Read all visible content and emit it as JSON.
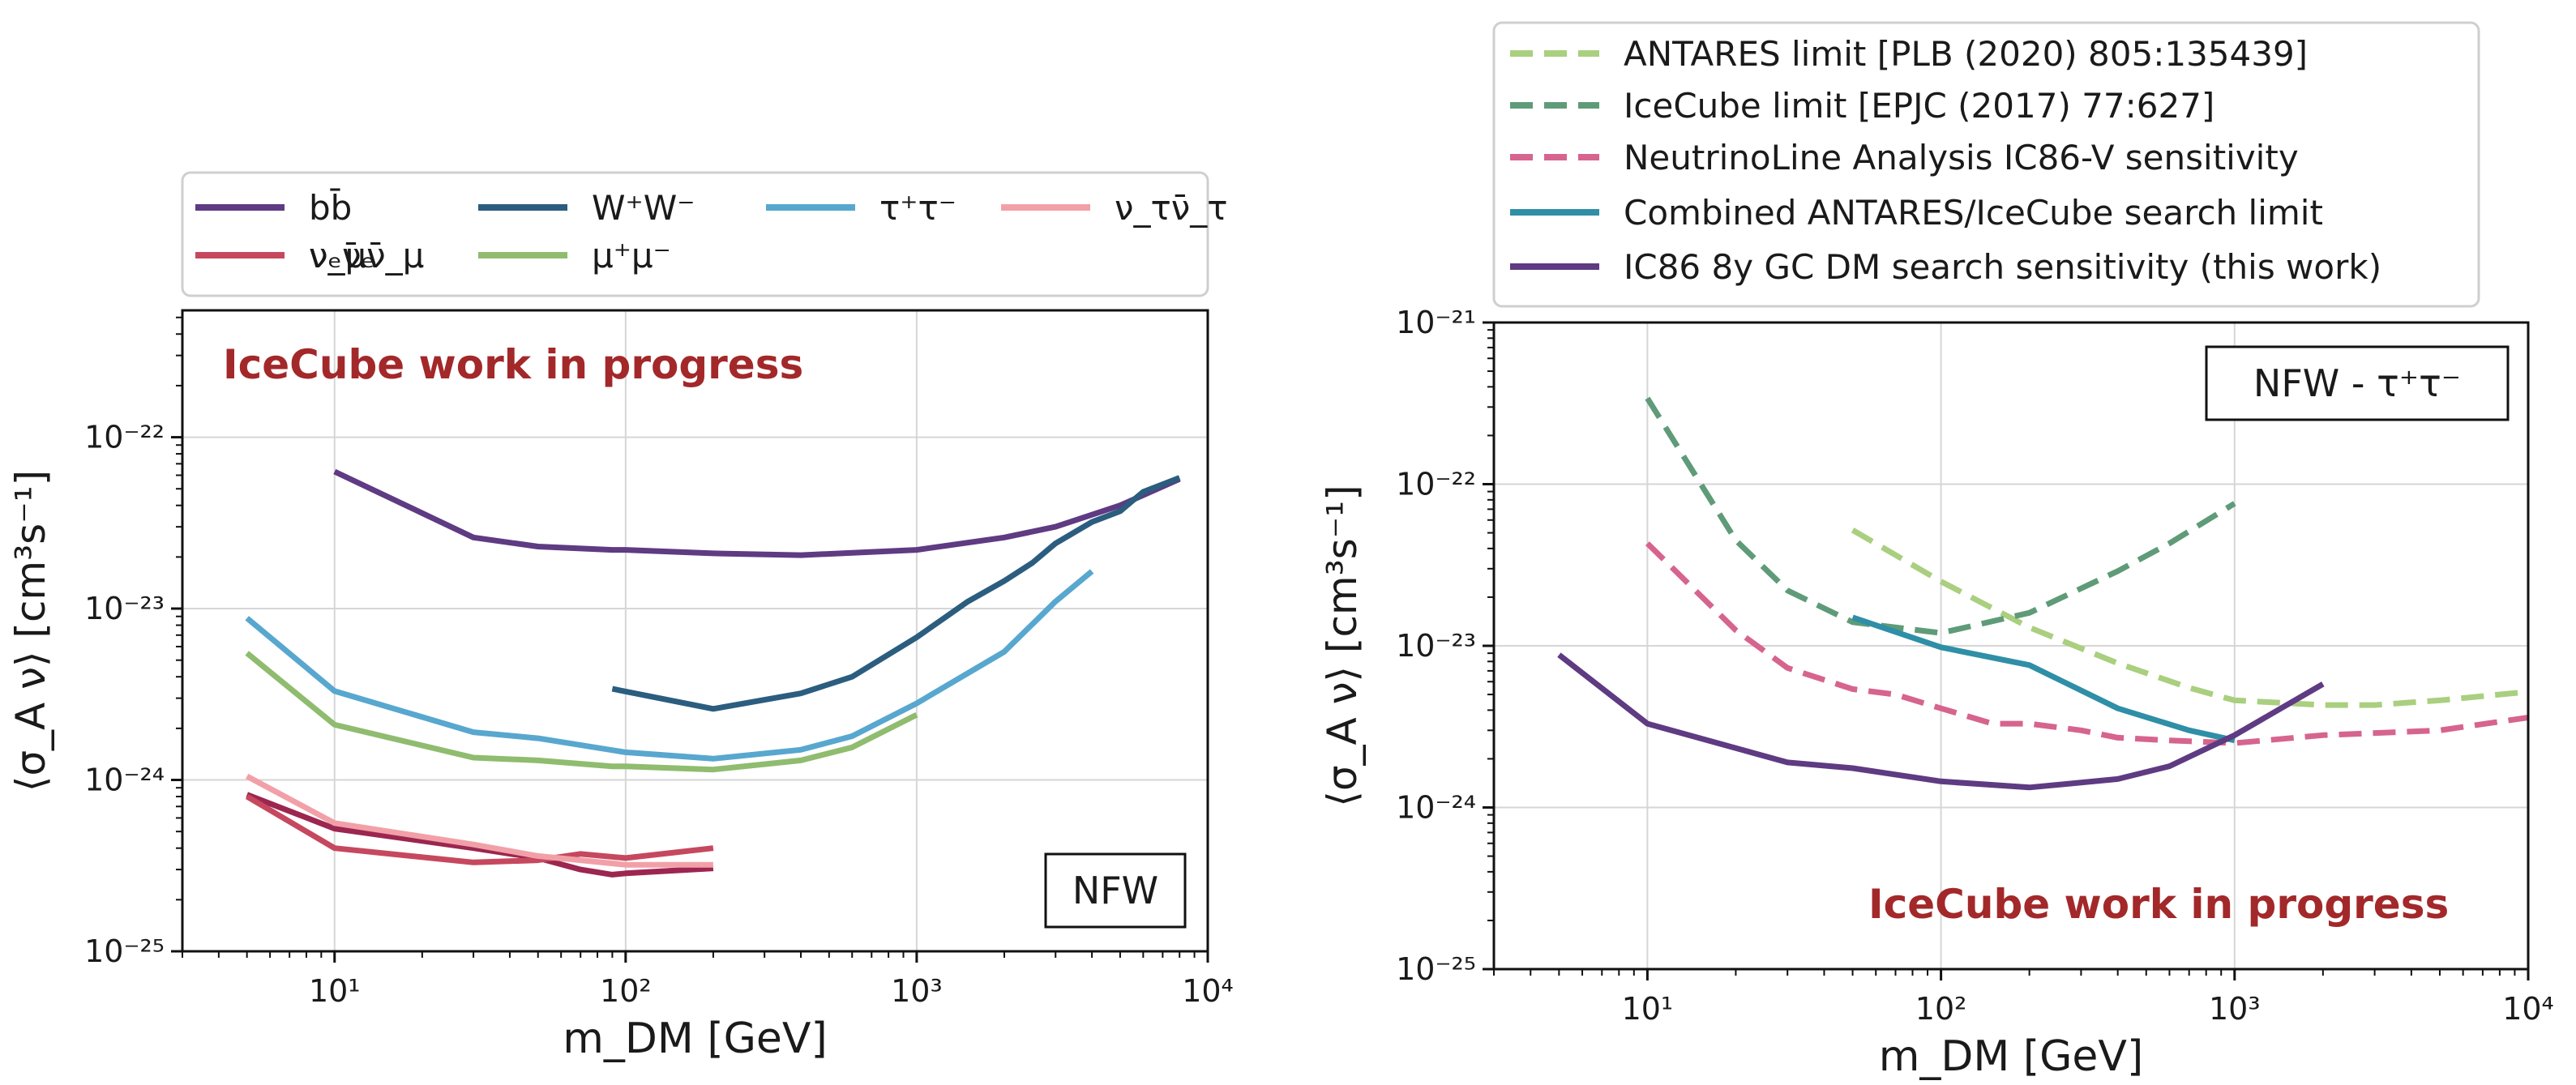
{
  "chart_data": [
    {
      "type": "line",
      "xscale": "log",
      "yscale": "log",
      "xlim": [
        3,
        10000
      ],
      "ylim": [
        1e-25,
        5.5e-22
      ],
      "xlabel": "m_DM [GeV]",
      "ylabel": "⟨σ_A ν⟩ [cm³s⁻¹]",
      "x_ticks": [
        10,
        100,
        1000,
        10000
      ],
      "y_ticks": [
        1e-25,
        1e-24,
        1e-23,
        1e-22
      ],
      "x_tick_labels": [
        "10¹",
        "10²",
        "10³",
        "10⁴"
      ],
      "y_tick_labels": [
        "10⁻²⁵",
        "10⁻²⁴",
        "10⁻²³",
        "10⁻²²"
      ],
      "grid": true,
      "watermark": "IceCube work in progress",
      "profile_label": "NFW",
      "legend_position": "above",
      "series": [
        {
          "name": "bb̄",
          "color": "#5e3b82",
          "x": [
            10,
            30,
            50,
            90,
            100,
            200,
            400,
            1000,
            2000,
            3000,
            5000,
            8000
          ],
          "y": [
            6.3e-23,
            2.6e-23,
            2.3e-23,
            2.2e-23,
            2.2e-23,
            2.1e-23,
            2.05e-23,
            2.2e-23,
            2.6e-23,
            3e-23,
            4e-23,
            5.7e-23
          ]
        },
        {
          "name": "W⁺W⁻",
          "color": "#2b5d7f",
          "x": [
            90,
            200,
            400,
            600,
            1000,
            1500,
            2000,
            2500,
            3000,
            4000,
            5000,
            6000,
            8000
          ],
          "y": [
            3.4e-24,
            2.6e-24,
            3.2e-24,
            4e-24,
            6.8e-24,
            1.1e-23,
            1.45e-23,
            1.85e-23,
            2.4e-23,
            3.2e-23,
            3.7e-23,
            4.8e-23,
            5.8e-23
          ]
        },
        {
          "name": "τ⁺τ⁻",
          "color": "#58a7cf",
          "x": [
            5,
            10,
            30,
            50,
            100,
            200,
            400,
            600,
            1000,
            2000,
            3000,
            4000
          ],
          "y": [
            8.8e-24,
            3.3e-24,
            1.9e-24,
            1.75e-24,
            1.45e-24,
            1.33e-24,
            1.5e-24,
            1.8e-24,
            2.8e-24,
            5.6e-24,
            1.1e-23,
            1.65e-23
          ]
        },
        {
          "name": "μ⁺μ⁻",
          "color": "#8fbc6f",
          "x": [
            5,
            10,
            30,
            50,
            90,
            100,
            200,
            400,
            600,
            1000
          ],
          "y": [
            5.5e-24,
            2.1e-24,
            1.35e-24,
            1.3e-24,
            1.2e-24,
            1.2e-24,
            1.15e-24,
            1.3e-24,
            1.55e-24,
            2.4e-24
          ]
        },
        {
          "name": "νₑν̄ₑ",
          "color": "#9c2650",
          "x": [
            5,
            10,
            30,
            50,
            70,
            90,
            100,
            200
          ],
          "y": [
            8.2e-25,
            5.2e-25,
            4e-25,
            3.5e-25,
            3e-25,
            2.8e-25,
            2.85e-25,
            3.05e-25
          ]
        },
        {
          "name": "ν_μν̄_μ",
          "color": "#c6485f",
          "x": [
            5,
            10,
            30,
            50,
            70,
            100,
            200
          ],
          "y": [
            8e-25,
            4e-25,
            3.3e-25,
            3.4e-25,
            3.7e-25,
            3.5e-25,
            4e-25
          ]
        },
        {
          "name": "ν_τν̄_τ",
          "color": "#f2a0a8",
          "x": [
            5,
            10,
            30,
            50,
            70,
            100,
            200
          ],
          "y": [
            1.05e-24,
            5.6e-25,
            4.2e-25,
            3.6e-25,
            3.4e-25,
            3.2e-25,
            3.2e-25
          ]
        }
      ]
    },
    {
      "type": "line",
      "xscale": "log",
      "yscale": "log",
      "xlim": [
        3,
        10000
      ],
      "ylim": [
        1e-25,
        1e-21
      ],
      "xlabel": "m_DM [GeV]",
      "ylabel": "⟨σ_A ν⟩ [cm³s⁻¹]",
      "x_ticks": [
        10,
        100,
        1000,
        10000
      ],
      "y_ticks": [
        1e-25,
        1e-24,
        1e-23,
        1e-22,
        1e-21
      ],
      "x_tick_labels": [
        "10¹",
        "10²",
        "10³",
        "10⁴"
      ],
      "y_tick_labels": [
        "10⁻²⁵",
        "10⁻²⁴",
        "10⁻²³",
        "10⁻²²",
        "10⁻²¹"
      ],
      "grid": true,
      "watermark": "IceCube work in progress",
      "profile_label": "NFW - τ⁺τ⁻",
      "legend_position": "above",
      "series": [
        {
          "name": "ANTARES limit [PLB (2020) 805:135439]",
          "color": "#a9cf7f",
          "dash": "dashed",
          "x": [
            50,
            100,
            200,
            400,
            700,
            1000,
            2000,
            3000,
            5000,
            10000
          ],
          "y": [
            5.2e-23,
            2.5e-23,
            1.3e-23,
            7.8e-24,
            5.5e-24,
            4.6e-24,
            4.3e-24,
            4.3e-24,
            4.6e-24,
            5.2e-24
          ]
        },
        {
          "name": "IceCube limit [EPJC (2017) 77:627]",
          "color": "#5f9b78",
          "dash": "dashed",
          "x": [
            10,
            20,
            30,
            50,
            100,
            200,
            400,
            600,
            1000
          ],
          "y": [
            3.4e-22,
            4.5e-23,
            2.2e-23,
            1.4e-23,
            1.2e-23,
            1.6e-23,
            2.9e-23,
            4.3e-23,
            7.6e-23
          ]
        },
        {
          "name": "NeutrinoLine Analysis IC86-V sensitivity",
          "color": "#d6648e",
          "dash": "dashed",
          "x": [
            10,
            20,
            30,
            50,
            70,
            100,
            150,
            200,
            300,
            400,
            600,
            1000,
            2000,
            5000,
            10000
          ],
          "y": [
            4.3e-23,
            1.25e-23,
            7.3e-24,
            5.4e-24,
            5e-24,
            4.1e-24,
            3.3e-24,
            3.3e-24,
            3e-24,
            2.7e-24,
            2.6e-24,
            2.5e-24,
            2.8e-24,
            3e-24,
            3.6e-24
          ]
        },
        {
          "name": "Combined ANTARES/IceCube search limit",
          "color": "#2e8fa6",
          "dash": "solid",
          "x": [
            50,
            100,
            200,
            400,
            700,
            1000
          ],
          "y": [
            1.5e-23,
            9.8e-24,
            7.6e-24,
            4.1e-24,
            3e-24,
            2.6e-24
          ]
        },
        {
          "name": "IC86 8y GC DM search sensitivity (this work)",
          "color": "#5e3b82",
          "dash": "solid",
          "x": [
            5,
            10,
            30,
            50,
            100,
            200,
            400,
            600,
            1000,
            2000
          ],
          "y": [
            8.8e-24,
            3.3e-24,
            1.9e-24,
            1.75e-24,
            1.45e-24,
            1.33e-24,
            1.5e-24,
            1.8e-24,
            2.8e-24,
            5.8e-24
          ]
        }
      ]
    }
  ]
}
